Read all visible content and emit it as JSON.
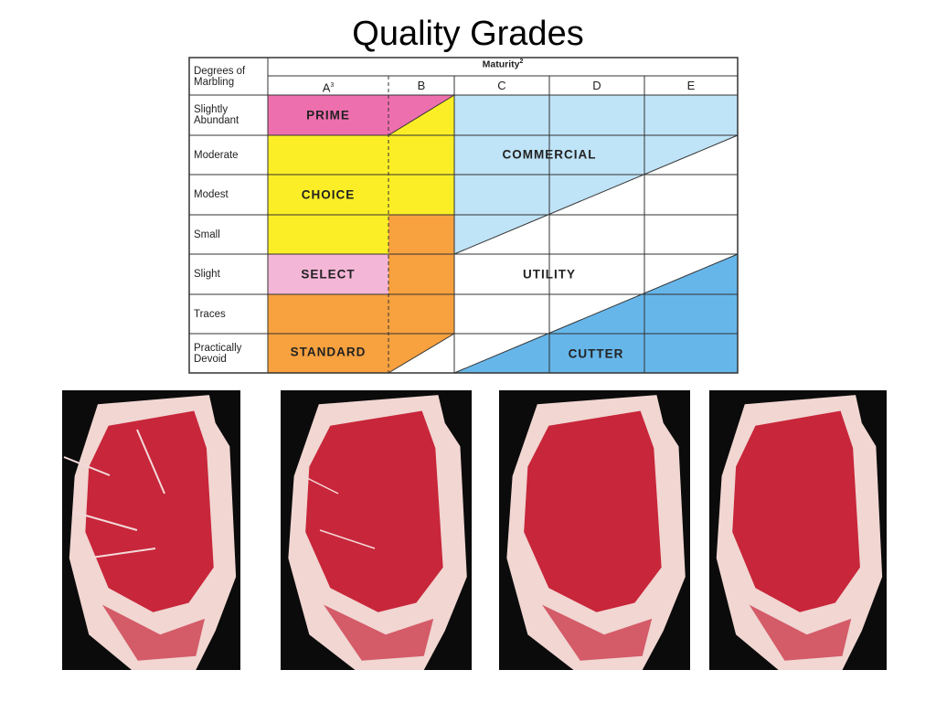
{
  "title": "Quality Grades",
  "table": {
    "corner": "Degrees of Marbling",
    "maturity": "Maturity",
    "maturity_note": "2",
    "columns": [
      "A",
      "B",
      "C",
      "D",
      "E"
    ],
    "a_note": "3",
    "rows": [
      "Slightly Abundant",
      "Moderate",
      "Modest",
      "Small",
      "Slight",
      "Traces",
      "Practically Devoid"
    ],
    "grades": [
      "PRIME",
      "CHOICE",
      "SELECT",
      "STANDARD",
      "COMMERCIAL",
      "UTILITY",
      "CUTTER"
    ]
  }
}
